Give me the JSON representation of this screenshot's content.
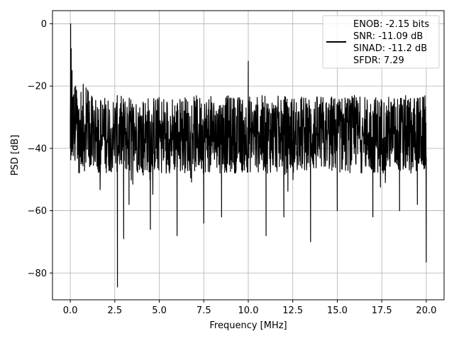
{
  "chart_data": {
    "type": "line",
    "title": "",
    "xlabel": "Frequency [MHz]",
    "ylabel": "PSD [dB]",
    "xlim": [
      -1.0,
      21.0
    ],
    "ylim": [
      -88.6,
      4.2
    ],
    "x_ticks": [
      0.0,
      2.5,
      5.0,
      7.5,
      10.0,
      12.5,
      15.0,
      17.5,
      20.0
    ],
    "x_tick_labels": [
      "0.0",
      "2.5",
      "5.0",
      "7.5",
      "10.0",
      "12.5",
      "15.0",
      "17.5",
      "20.0"
    ],
    "y_ticks": [
      0,
      -20,
      -40,
      -60,
      -80
    ],
    "y_tick_labels": [
      "0",
      "−20",
      "−40",
      "−60",
      "−80"
    ],
    "grid": true,
    "legend_placement": "top-right",
    "line_color": "#000000",
    "series": [
      {
        "name": "ENOB: -2.15 bits\nSNR: -11.09 dB\nSINAD: -11.2 dB\nSFDR: 7.29",
        "description": "dense noise floor spanning roughly -22 to -50 dB across 0-20 MHz",
        "floor_top": -23,
        "floor_bottom": -48,
        "x": [
          0.0,
          0.02,
          0.05,
          0.1,
          0.3,
          0.6,
          1.0,
          2.0,
          2.65,
          3.0,
          3.3,
          4.5,
          6.0,
          7.5,
          8.5,
          10.0,
          11.0,
          12.0,
          13.5,
          15.0,
          17.0,
          18.5,
          19.5,
          20.0
        ],
        "y": [
          -40,
          0,
          -8,
          -15,
          -20,
          -22,
          -24,
          -26,
          -84.5,
          -69,
          -58,
          -66,
          -68,
          -64,
          -62,
          -12,
          -68,
          -62,
          -70,
          -60,
          -62,
          -60,
          -58,
          -76.5
        ]
      }
    ],
    "legend_lines": [
      "ENOB: -2.15 bits",
      "SNR: -11.09 dB",
      "SINAD: -11.2 dB",
      "SFDR: 7.29"
    ]
  }
}
